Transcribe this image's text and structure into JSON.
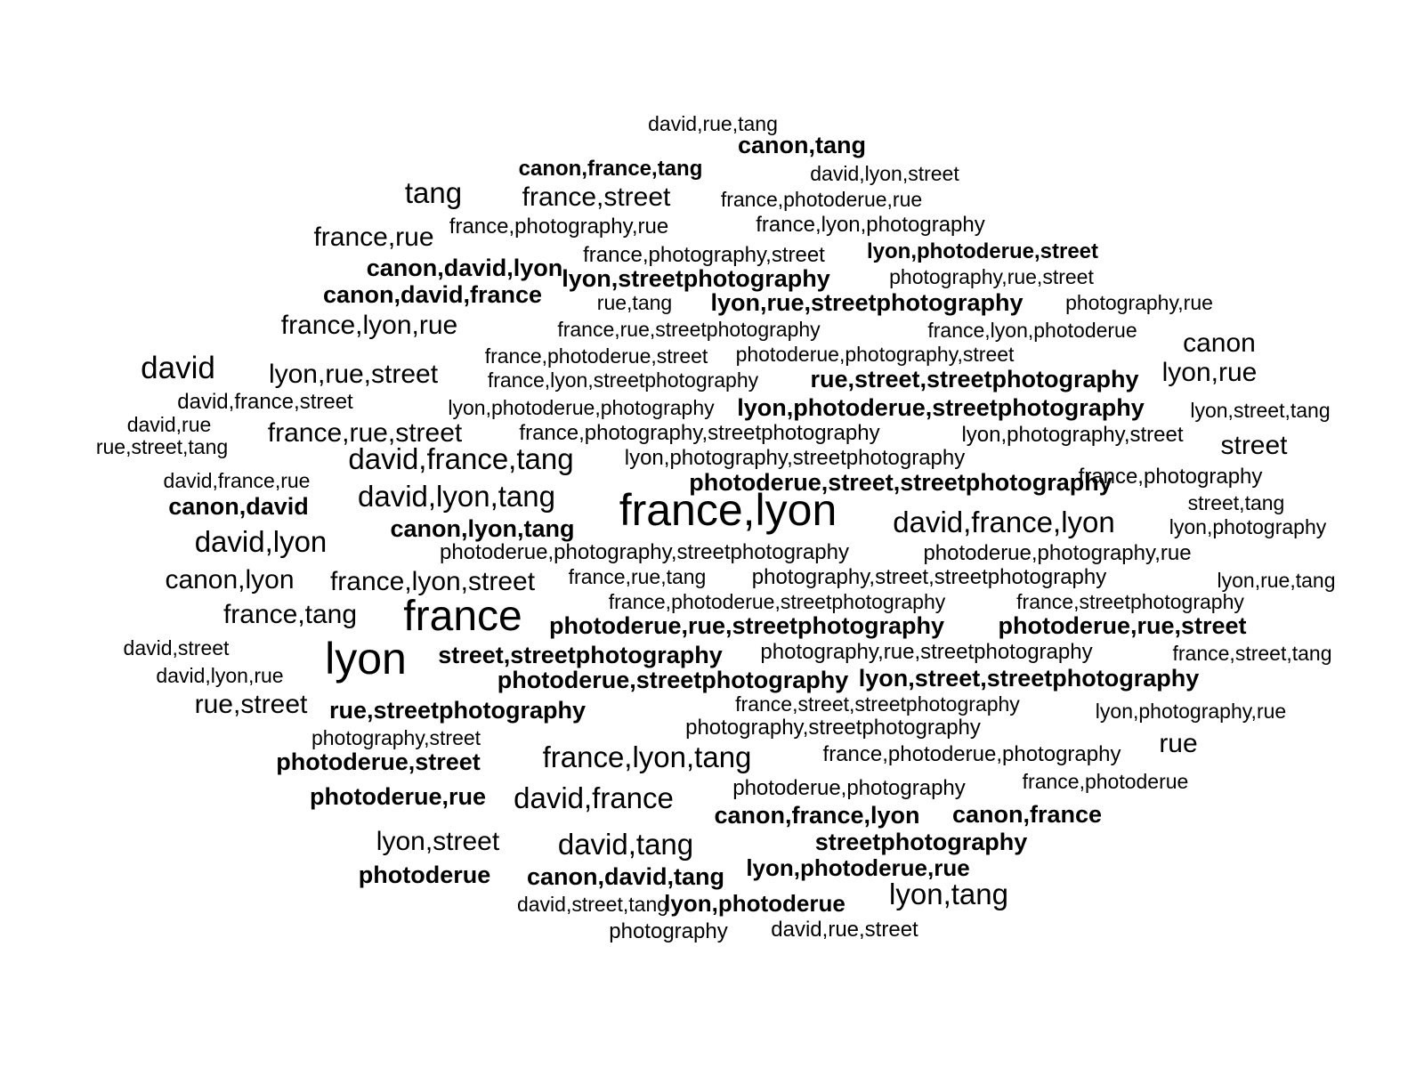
{
  "word_cloud": {
    "text_color": "#000000",
    "background": "#ffffff",
    "words": [
      {
        "text": "david,rue,tang",
        "weight": 1
      },
      {
        "text": "canon,tang",
        "weight": 2
      },
      {
        "text": "canon,france,tang",
        "weight": 2
      },
      {
        "text": "david,lyon,street",
        "weight": 1
      },
      {
        "text": "tang",
        "weight": 4
      },
      {
        "text": "france,street",
        "weight": 3
      },
      {
        "text": "france,photoderue,rue",
        "weight": 1
      },
      {
        "text": "france,photography,rue",
        "weight": 1
      },
      {
        "text": "france,lyon,photography",
        "weight": 1
      },
      {
        "text": "france,rue",
        "weight": 3
      },
      {
        "text": "france,photography,street",
        "weight": 1
      },
      {
        "text": "lyon,photoderue,street",
        "weight": 2
      },
      {
        "text": "canon,david,lyon",
        "weight": 2
      },
      {
        "text": "lyon,streetphotography",
        "weight": 2
      },
      {
        "text": "photography,rue,street",
        "weight": 1
      },
      {
        "text": "canon,david,france",
        "weight": 2
      },
      {
        "text": "rue,tang",
        "weight": 1
      },
      {
        "text": "lyon,rue,streetphotography",
        "weight": 2
      },
      {
        "text": "photography,rue",
        "weight": 1
      },
      {
        "text": "france,lyon,rue",
        "weight": 3
      },
      {
        "text": "france,rue,streetphotography",
        "weight": 1
      },
      {
        "text": "france,lyon,photoderue",
        "weight": 1
      },
      {
        "text": "canon",
        "weight": 3
      },
      {
        "text": "france,photoderue,street",
        "weight": 1
      },
      {
        "text": "photoderue,photography,street",
        "weight": 1
      },
      {
        "text": "david",
        "weight": 4
      },
      {
        "text": "lyon,rue,street",
        "weight": 3
      },
      {
        "text": "france,lyon,streetphotography",
        "weight": 1
      },
      {
        "text": "rue,street,streetphotography",
        "weight": 2
      },
      {
        "text": "lyon,rue",
        "weight": 3
      },
      {
        "text": "david,france,street",
        "weight": 1
      },
      {
        "text": "lyon,photoderue,photography",
        "weight": 1
      },
      {
        "text": "lyon,photoderue,streetphotography",
        "weight": 2
      },
      {
        "text": "lyon,street,tang",
        "weight": 1
      },
      {
        "text": "david,rue",
        "weight": 1
      },
      {
        "text": "rue,street,tang",
        "weight": 1
      },
      {
        "text": "france,rue,street",
        "weight": 3
      },
      {
        "text": "france,photography,streetphotography",
        "weight": 1
      },
      {
        "text": "lyon,photography,street",
        "weight": 1
      },
      {
        "text": "street",
        "weight": 3
      },
      {
        "text": "david,france,tang",
        "weight": 3
      },
      {
        "text": "lyon,photography,streetphotography",
        "weight": 1
      },
      {
        "text": "david,france,rue",
        "weight": 1
      },
      {
        "text": "photoderue,street,streetphotography",
        "weight": 2
      },
      {
        "text": "france,photography",
        "weight": 1
      },
      {
        "text": "canon,david",
        "weight": 2
      },
      {
        "text": "david,lyon,tang",
        "weight": 3
      },
      {
        "text": "street,tang",
        "weight": 1
      },
      {
        "text": "france,lyon",
        "weight": 6
      },
      {
        "text": "david,france,lyon",
        "weight": 3
      },
      {
        "text": "canon,lyon,tang",
        "weight": 2
      },
      {
        "text": "lyon,photography",
        "weight": 1
      },
      {
        "text": "david,lyon",
        "weight": 3
      },
      {
        "text": "photoderue,photography,streetphotography",
        "weight": 1
      },
      {
        "text": "photoderue,photography,rue",
        "weight": 1
      },
      {
        "text": "canon,lyon",
        "weight": 3
      },
      {
        "text": "france,lyon,street",
        "weight": 3
      },
      {
        "text": "france,rue,tang",
        "weight": 1
      },
      {
        "text": "photography,street,streetphotography",
        "weight": 1
      },
      {
        "text": "lyon,rue,tang",
        "weight": 1
      },
      {
        "text": "france,photoderue,streetphotography",
        "weight": 1
      },
      {
        "text": "france,streetphotography",
        "weight": 1
      },
      {
        "text": "france,tang",
        "weight": 3
      },
      {
        "text": "france",
        "weight": 6
      },
      {
        "text": "photoderue,rue,streetphotography",
        "weight": 2
      },
      {
        "text": "photoderue,rue,street",
        "weight": 2
      },
      {
        "text": "david,street",
        "weight": 1
      },
      {
        "text": "lyon",
        "weight": 6
      },
      {
        "text": "street,streetphotography",
        "weight": 2
      },
      {
        "text": "photography,rue,streetphotography",
        "weight": 1
      },
      {
        "text": "france,street,tang",
        "weight": 1
      },
      {
        "text": "david,lyon,rue",
        "weight": 1
      },
      {
        "text": "photoderue,streetphotography",
        "weight": 2
      },
      {
        "text": "lyon,street,streetphotography",
        "weight": 2
      },
      {
        "text": "rue,street",
        "weight": 3
      },
      {
        "text": "rue,streetphotography",
        "weight": 2
      },
      {
        "text": "france,street,streetphotography",
        "weight": 1
      },
      {
        "text": "lyon,photography,rue",
        "weight": 1
      },
      {
        "text": "photography,streetphotography",
        "weight": 1
      },
      {
        "text": "photography,street",
        "weight": 1
      },
      {
        "text": "rue",
        "weight": 3
      },
      {
        "text": "photoderue,street",
        "weight": 2
      },
      {
        "text": "france,lyon,tang",
        "weight": 3
      },
      {
        "text": "france,photoderue,photography",
        "weight": 1
      },
      {
        "text": "france,photoderue",
        "weight": 1
      },
      {
        "text": "photoderue,rue",
        "weight": 2
      },
      {
        "text": "david,france",
        "weight": 3
      },
      {
        "text": "photoderue,photography",
        "weight": 1
      },
      {
        "text": "canon,france,lyon",
        "weight": 2
      },
      {
        "text": "canon,france",
        "weight": 2
      },
      {
        "text": "lyon,street",
        "weight": 3
      },
      {
        "text": "david,tang",
        "weight": 3
      },
      {
        "text": "streetphotography",
        "weight": 2
      },
      {
        "text": "photoderue",
        "weight": 2
      },
      {
        "text": "canon,david,tang",
        "weight": 2
      },
      {
        "text": "lyon,photoderue,rue",
        "weight": 2
      },
      {
        "text": "david,street,tang",
        "weight": 1
      },
      {
        "text": "lyon,photoderue",
        "weight": 2
      },
      {
        "text": "lyon,tang",
        "weight": 3
      },
      {
        "text": "photography",
        "weight": 1
      },
      {
        "text": "david,rue,street",
        "weight": 1
      }
    ]
  }
}
